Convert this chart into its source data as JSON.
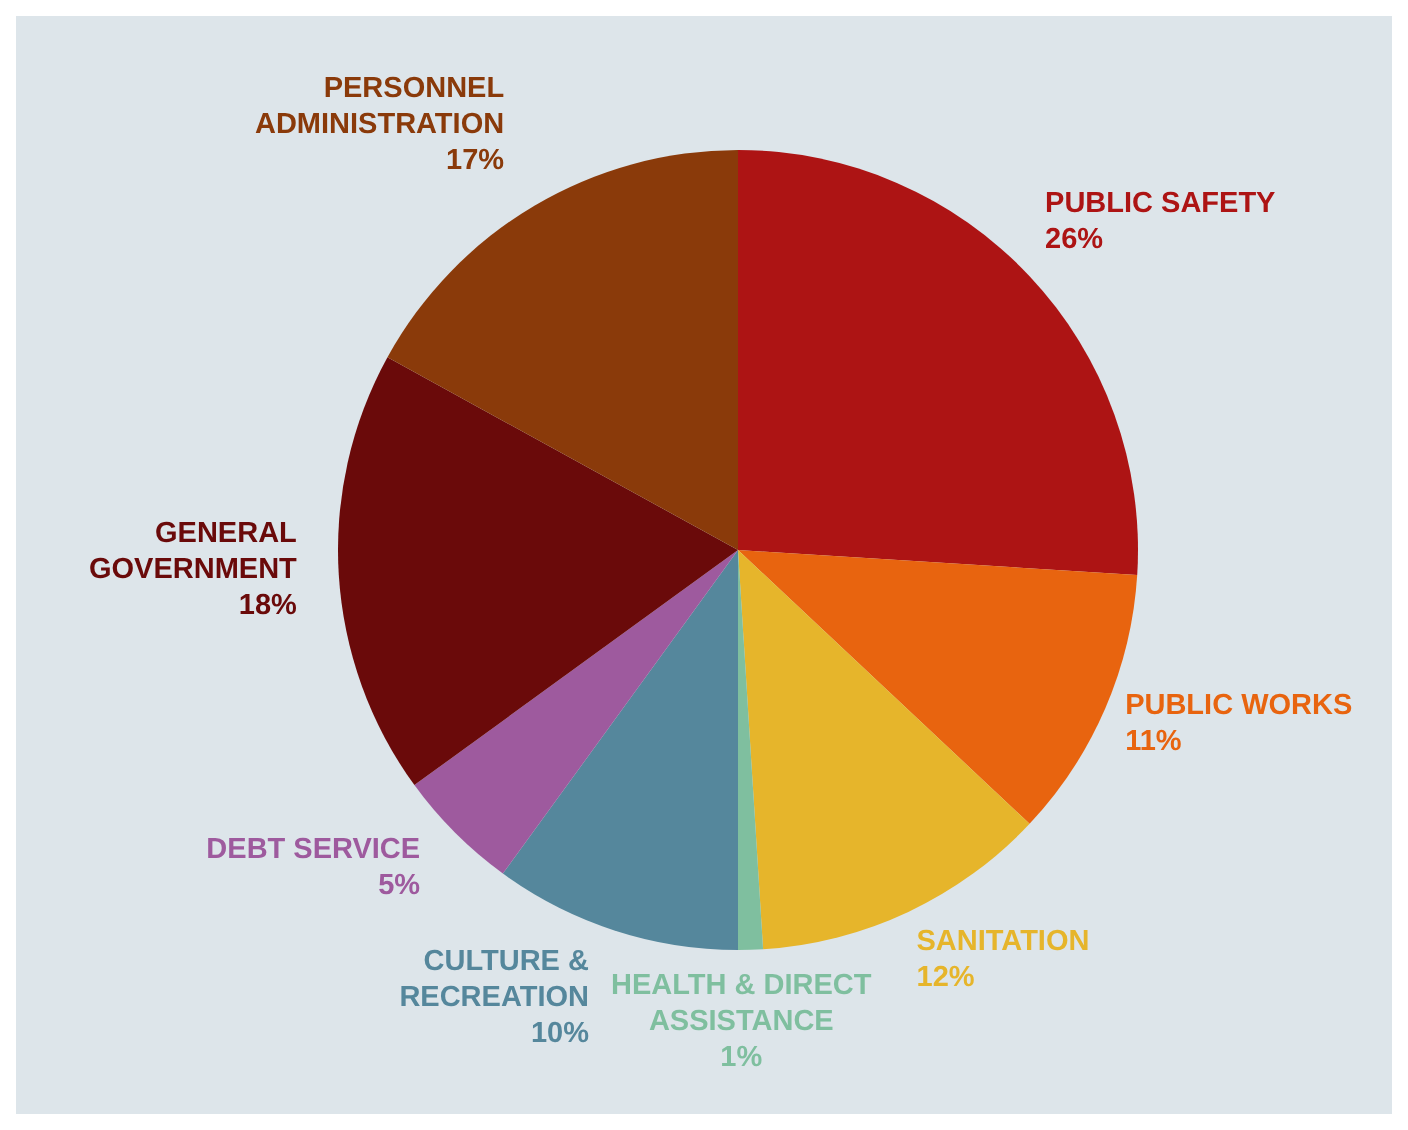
{
  "chart_data": {
    "type": "pie",
    "categories": [
      "PUBLIC SAFETY",
      "PUBLIC WORKS",
      "SANITATION",
      "HEALTH & DIRECT ASSISTANCE",
      "CULTURE & RECREATION",
      "DEBT SERVICE",
      "GENERAL GOVERNMENT",
      "PERSONNEL ADMINISTRATION"
    ],
    "values": [
      26,
      11,
      12,
      1,
      10,
      5,
      18,
      17
    ],
    "value_labels": [
      "26%",
      "11%",
      "12%",
      "1%",
      "10%",
      "5%",
      "18%",
      "17%"
    ],
    "colors": [
      "#ad1414",
      "#e8640f",
      "#e6b52b",
      "#7fbf9f",
      "#55879c",
      "#9e5a9e",
      "#6a0a0a",
      "#8a3a0a"
    ]
  }
}
